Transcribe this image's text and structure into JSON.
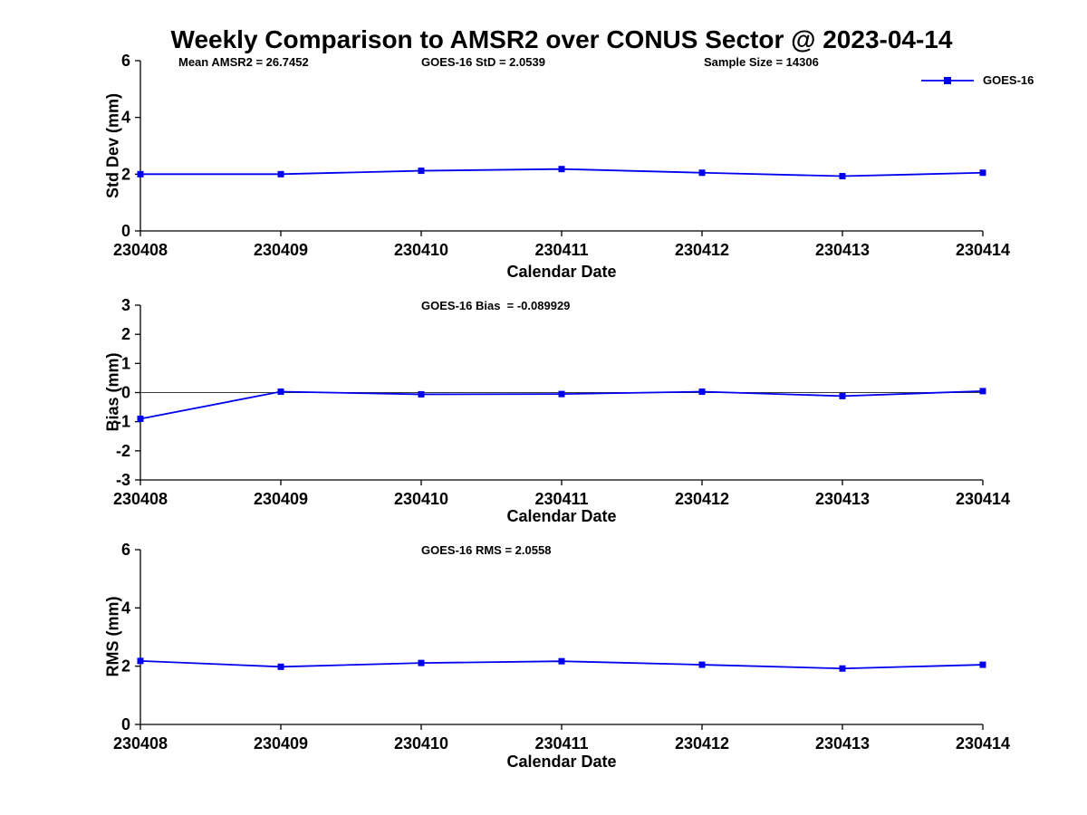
{
  "title": "Weekly Comparison to AMSR2 over CONUS Sector @ 2023-04-14",
  "colors": {
    "series": "#0000EE",
    "axis": "#000000",
    "zero_line": "#3a3a3a"
  },
  "legend": {
    "label": "GOES-16",
    "position": "top-right"
  },
  "chart_data": [
    {
      "id": "std-dev",
      "type": "line",
      "annotations": [
        "Mean AMSR2 = 26.7452",
        "GOES-16 StD = 2.0539",
        "Sample Size = 14306"
      ],
      "xlabel": "Calendar Date",
      "ylabel": "Std Dev (mm)",
      "categories": [
        "230408",
        "230409",
        "230410",
        "230411",
        "230412",
        "230413",
        "230414"
      ],
      "series": [
        {
          "name": "GOES-16",
          "values": [
            2.0,
            2.0,
            2.12,
            2.18,
            2.05,
            1.93,
            2.05
          ]
        }
      ],
      "ylim": [
        0,
        6
      ],
      "yticks": [
        0,
        2,
        4,
        6
      ],
      "grid": false,
      "zero_line": false,
      "legend_position": "top-right"
    },
    {
      "id": "bias",
      "type": "line",
      "annotations": [
        "GOES-16 Bias  = -0.089929"
      ],
      "xlabel": "Calendar Date",
      "ylabel": "Bias (mm)",
      "categories": [
        "230408",
        "230409",
        "230410",
        "230411",
        "230412",
        "230413",
        "230414"
      ],
      "series": [
        {
          "name": "GOES-16",
          "values": [
            -0.9,
            0.03,
            -0.06,
            -0.05,
            0.03,
            -0.12,
            0.05
          ]
        }
      ],
      "ylim": [
        -3,
        3
      ],
      "yticks": [
        -3,
        -2,
        -1,
        0,
        1,
        2,
        3
      ],
      "grid": false,
      "zero_line": true,
      "legend_position": "none"
    },
    {
      "id": "rms",
      "type": "line",
      "annotations": [
        "GOES-16 RMS = 2.0558"
      ],
      "xlabel": "Calendar Date",
      "ylabel": "RMS (mm)",
      "categories": [
        "230408",
        "230409",
        "230410",
        "230411",
        "230412",
        "230413",
        "230414"
      ],
      "series": [
        {
          "name": "GOES-16",
          "values": [
            2.18,
            1.98,
            2.11,
            2.17,
            2.05,
            1.92,
            2.05
          ]
        }
      ],
      "ylim": [
        0,
        6
      ],
      "yticks": [
        0,
        2,
        4,
        6
      ],
      "grid": false,
      "zero_line": false,
      "legend_position": "none"
    }
  ]
}
